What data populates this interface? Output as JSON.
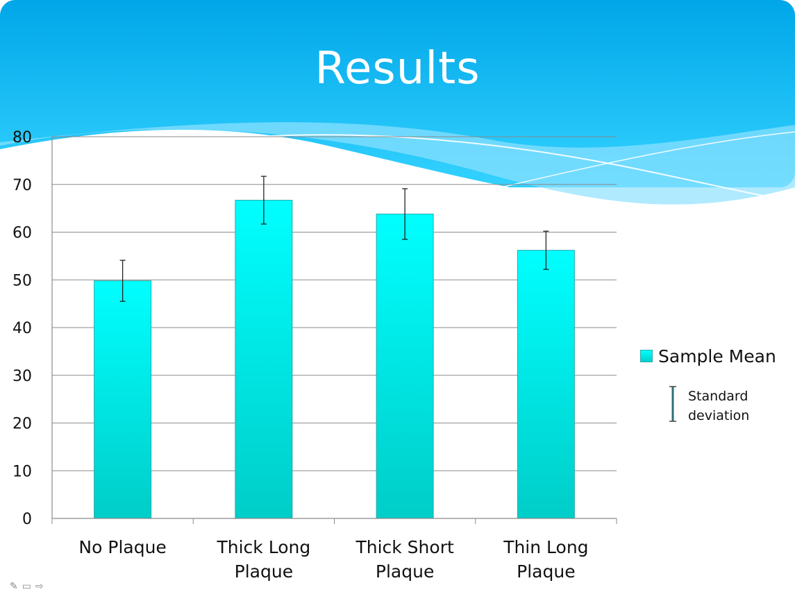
{
  "slide": {
    "title": "Results"
  },
  "chart_data": {
    "type": "bar",
    "categories": [
      "No Plaque",
      "Thick Long Plaque",
      "Thick Short Plaque",
      "Thin Long Plaque"
    ],
    "category_lines": [
      [
        "No Plaque"
      ],
      [
        "Thick Long",
        "Plaque"
      ],
      [
        "Thick Short",
        "Plaque"
      ],
      [
        "Thin Long",
        "Plaque"
      ]
    ],
    "series": [
      {
        "name": "Sample Mean",
        "values": [
          49.8,
          66.7,
          63.8,
          56.2
        ],
        "error": [
          4.3,
          5.0,
          5.3,
          4.0
        ]
      }
    ],
    "error_bar_label": "Standard deviation",
    "y_ticks": [
      "0",
      "10",
      "20",
      "30",
      "40",
      "50",
      "60",
      "70",
      "80"
    ],
    "ylim": [
      0,
      80
    ],
    "grid": true,
    "legend_position": "right",
    "colors": {
      "bar_top": "#00ffff",
      "bar_bottom": "#00cdc8",
      "bar_border": "#2aa8a8",
      "grid": "#8a8a8a"
    }
  },
  "legend": {
    "mean_label": "Sample Mean",
    "sd_label": "Standard deviation"
  },
  "theme": {
    "header_top": "#00a8ea",
    "header_bottom": "#50d8ff"
  }
}
